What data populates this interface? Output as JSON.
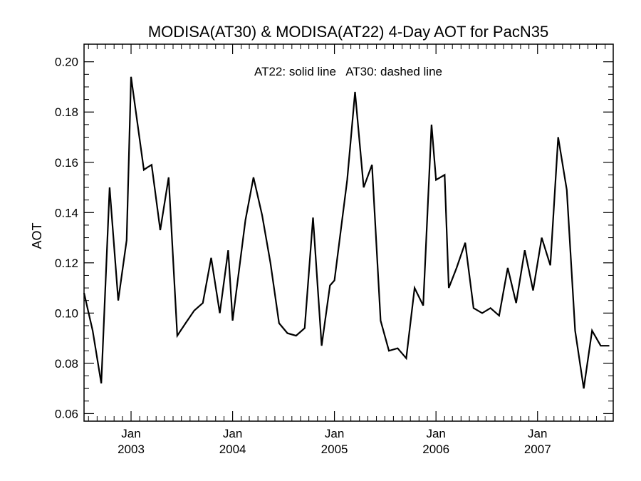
{
  "chart_data": {
    "type": "line",
    "title": "MODISA(AT30) & MODISA(AT22) 4-Day AOT for PacN35",
    "ylabel": "AOT",
    "xlabel": "",
    "annotation": "AT22: solid line   AT30: dashed line",
    "ylim": [
      0.057,
      0.207
    ],
    "xlim": [
      "2002-07-16",
      "2007-09-30"
    ],
    "yticks": [
      0.06,
      0.08,
      0.1,
      0.12,
      0.14,
      0.16,
      0.18,
      0.2
    ],
    "ytick_labels": [
      "0.06",
      "0.08",
      "0.10",
      "0.12",
      "0.14",
      "0.16",
      "0.18",
      "0.20"
    ],
    "xticks": [
      {
        "date": "2003-01-01",
        "month": "Jan",
        "year": "2003"
      },
      {
        "date": "2004-01-01",
        "month": "Jan",
        "year": "2004"
      },
      {
        "date": "2005-01-01",
        "month": "Jan",
        "year": "2005"
      },
      {
        "date": "2006-01-01",
        "month": "Jan",
        "year": "2006"
      },
      {
        "date": "2007-01-01",
        "month": "Jan",
        "year": "2007"
      }
    ],
    "line_color": "#000000",
    "grid": false,
    "series": [
      {
        "x": [
          "2002-07-16",
          "2002-08-16",
          "2002-09-16",
          "2002-10-16",
          "2002-11-16",
          "2002-12-16",
          "2003-01-01",
          "2003-02-16",
          "2003-03-01",
          "2003-03-16",
          "2003-04-16",
          "2003-05-16",
          "2003-06-16",
          "2003-07-16",
          "2003-08-16",
          "2003-09-16",
          "2003-10-16",
          "2003-11-16",
          "2003-12-16",
          "2004-01-01",
          "2004-02-16",
          "2004-03-16",
          "2004-04-16",
          "2004-05-16",
          "2004-06-16",
          "2004-07-16",
          "2004-08-16",
          "2004-09-16",
          "2004-10-16",
          "2004-11-16",
          "2004-12-16",
          "2005-01-01",
          "2005-02-16",
          "2005-03-16",
          "2005-04-16",
          "2005-05-16",
          "2005-06-16",
          "2005-07-16",
          "2005-08-16",
          "2005-09-16",
          "2005-10-16",
          "2005-11-16",
          "2005-12-16",
          "2006-01-01",
          "2006-02-01",
          "2006-02-16",
          "2006-03-16",
          "2006-04-16",
          "2006-05-16",
          "2006-06-16",
          "2006-07-16",
          "2006-08-16",
          "2006-09-16",
          "2006-10-16",
          "2006-11-16",
          "2006-12-16",
          "2007-01-16",
          "2007-02-16",
          "2007-03-16",
          "2007-04-16",
          "2007-05-16",
          "2007-06-16",
          "2007-07-16",
          "2007-08-16",
          "2007-09-16"
        ],
        "y": [
          0.108,
          0.093,
          0.072,
          0.15,
          0.105,
          0.129,
          0.194,
          0.157,
          0.158,
          0.159,
          0.133,
          0.154,
          0.091,
          0.096,
          0.101,
          0.104,
          0.122,
          0.1,
          0.125,
          0.097,
          0.137,
          0.154,
          0.139,
          0.12,
          0.096,
          0.092,
          0.091,
          0.094,
          0.138,
          0.087,
          0.111,
          0.113,
          0.153,
          0.188,
          0.15,
          0.159,
          0.097,
          0.085,
          0.086,
          0.082,
          0.11,
          0.103,
          0.175,
          0.153,
          0.155,
          0.11,
          0.118,
          0.128,
          0.102,
          0.1,
          0.102,
          0.099,
          0.118,
          0.104,
          0.125,
          0.109,
          0.13,
          0.119,
          0.17,
          0.149,
          0.093,
          0.07,
          0.093,
          0.087,
          0.087
        ]
      }
    ]
  }
}
